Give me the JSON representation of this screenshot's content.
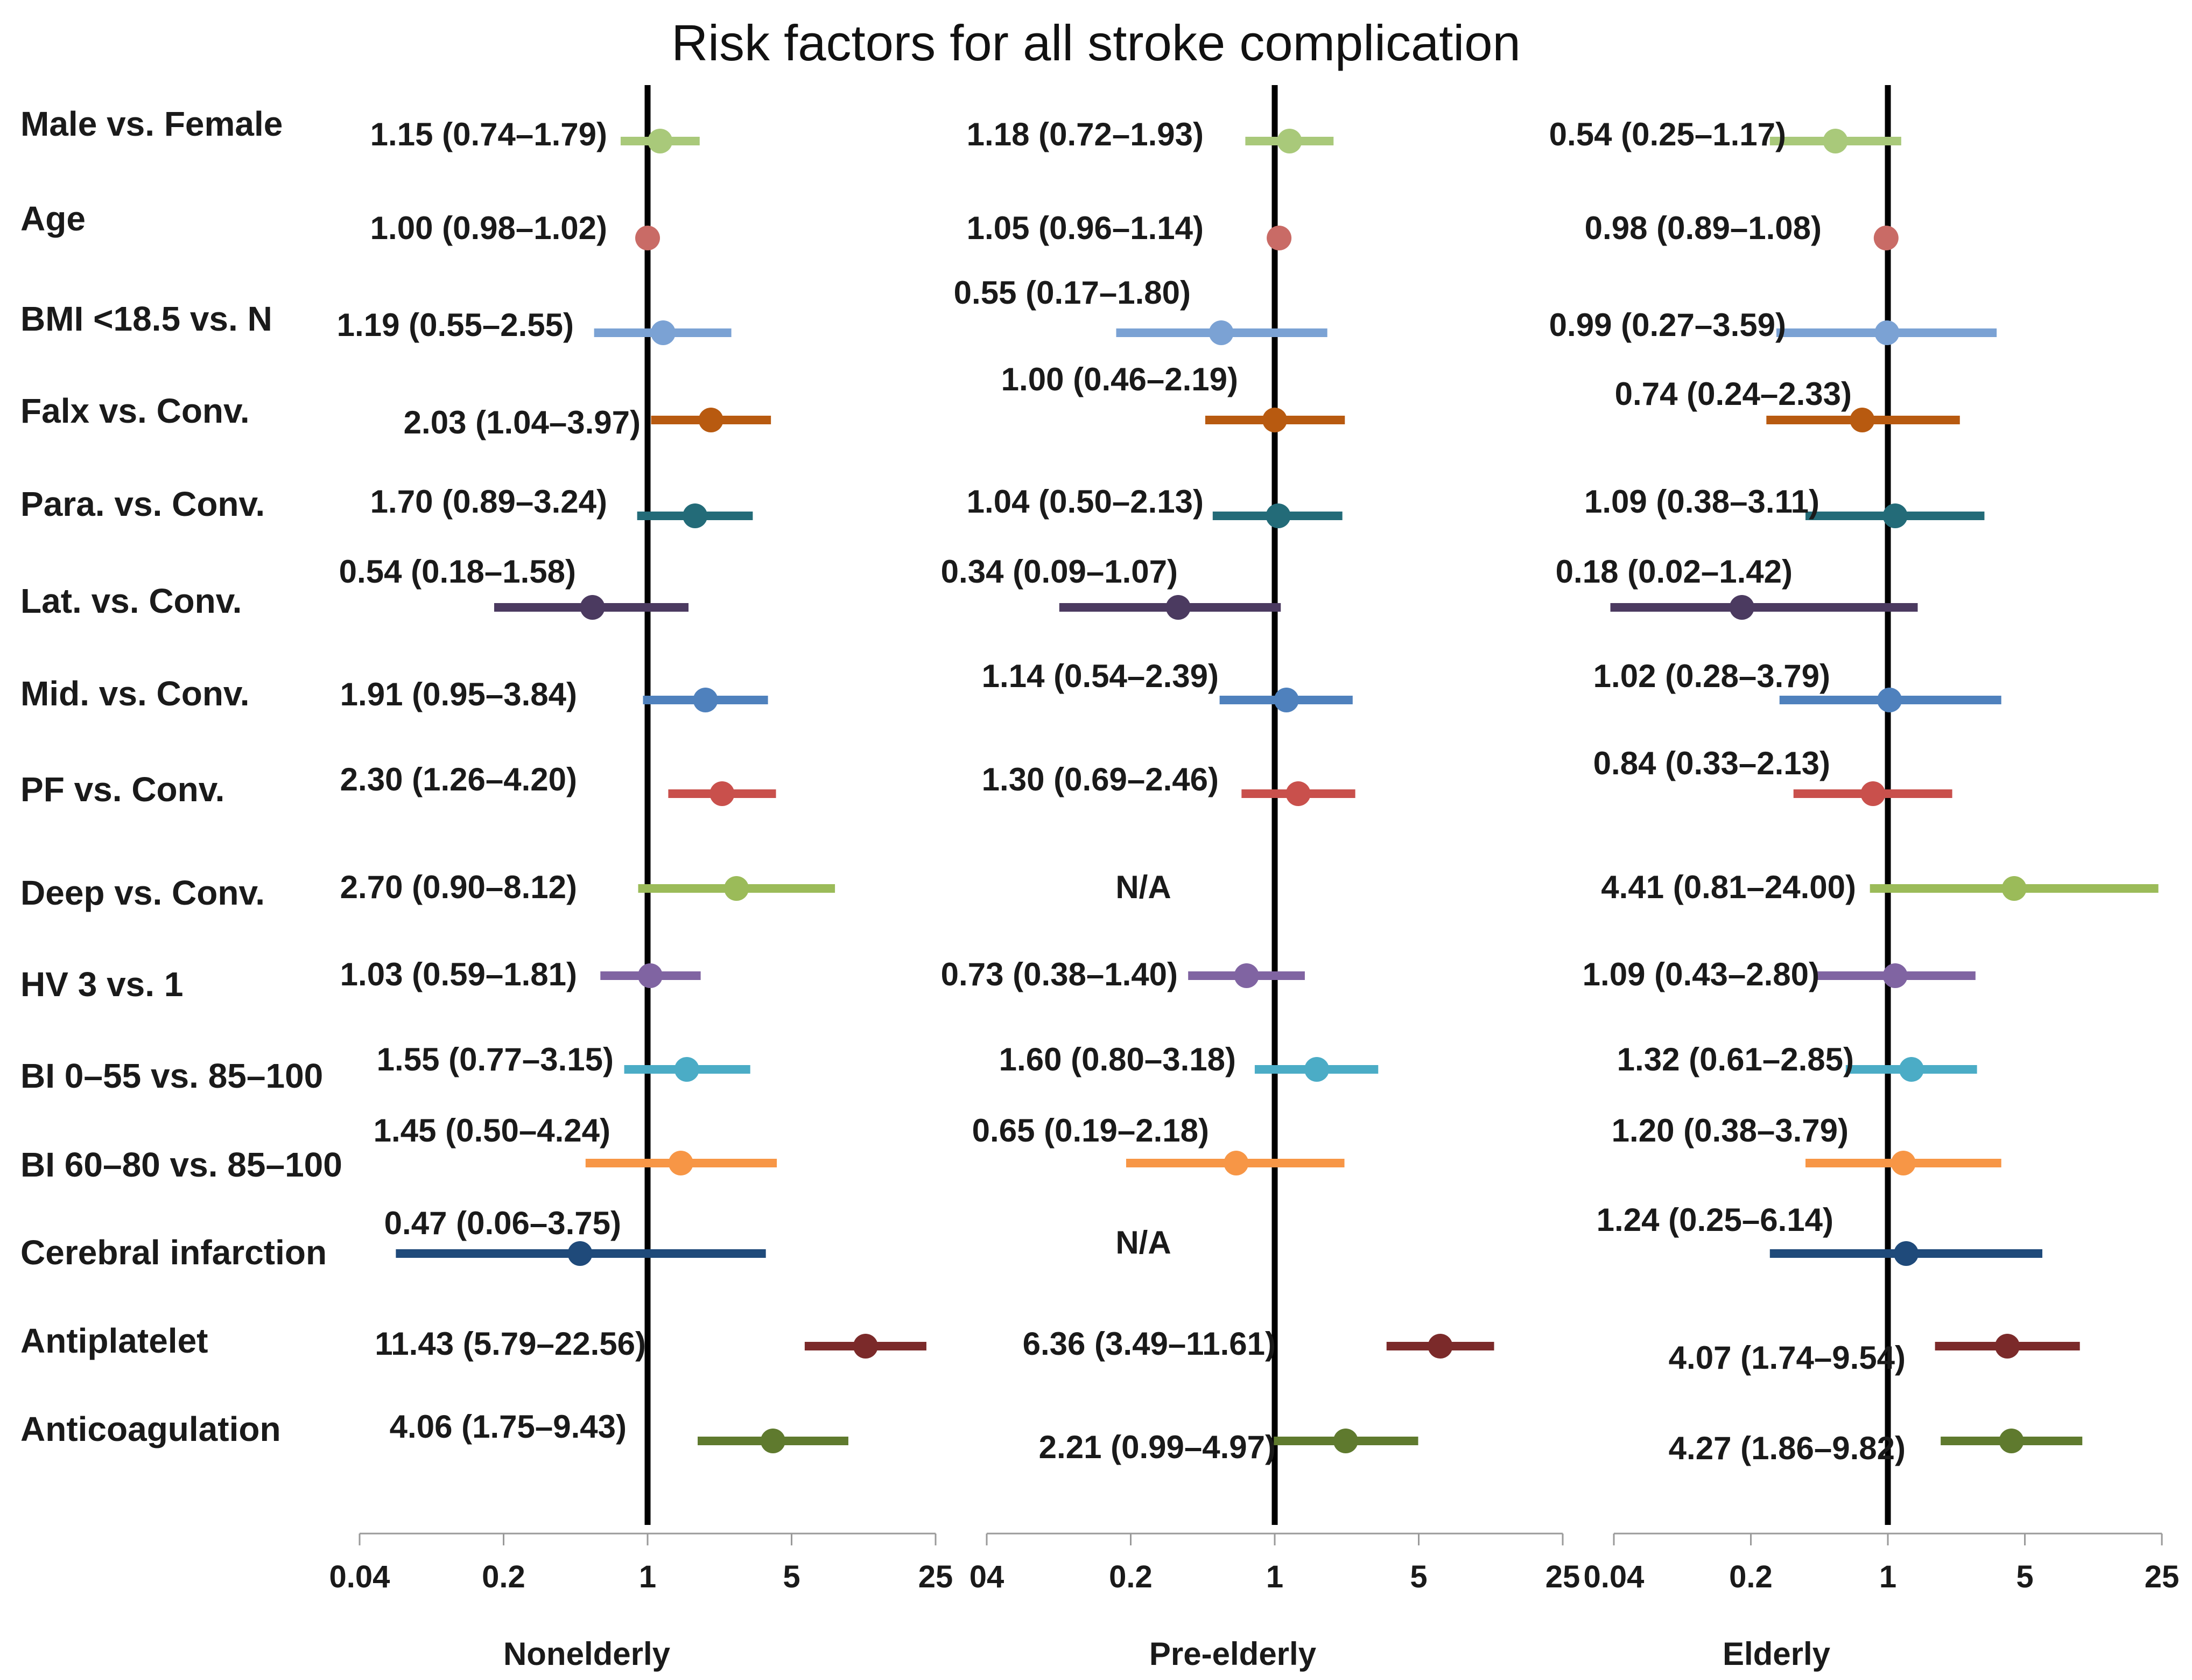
{
  "chart_data": {
    "type": "forest",
    "title": "Risk factors for all stroke complication",
    "x_scale": "log",
    "xlim": [
      0.04,
      25
    ],
    "ticks": [
      "0.04",
      "0.2",
      "1",
      "5",
      "25"
    ],
    "panel_tick_labels": [
      [
        "0.04",
        "0.2",
        "1",
        "5",
        "25"
      ],
      [
        "04",
        "0.2",
        "1",
        "5",
        "25"
      ],
      [
        "0.04",
        "0.2",
        "1",
        "5",
        "25"
      ]
    ],
    "reference_line": 1,
    "factors": [
      {
        "name": "Male vs. Female",
        "color": "#a9c97a"
      },
      {
        "name": "Age",
        "color": "#c96b66"
      },
      {
        "name": "BMI <18.5 vs. N",
        "color": "#7ba2d4"
      },
      {
        "name": "Falx vs. Conv.",
        "color": "#b85a10"
      },
      {
        "name": "Para. vs. Conv.",
        "color": "#236b78"
      },
      {
        "name": "Lat. vs. Conv.",
        "color": "#4b3a60"
      },
      {
        "name": "Mid. vs. Conv.",
        "color": "#4f81bd"
      },
      {
        "name": "PF vs. Conv.",
        "color": "#c9504c"
      },
      {
        "name": "Deep vs. Conv.",
        "color": "#9bbb59"
      },
      {
        "name": "HV 3 vs. 1",
        "color": "#8064a2"
      },
      {
        "name": "BI 0–55 vs. 85–100",
        "color": "#4bacc6"
      },
      {
        "name": "BI 60–80 vs. 85–100",
        "color": "#f79646"
      },
      {
        "name": "Cerebral infarction",
        "color": "#1f4a7a"
      },
      {
        "name": "Antiplatelet",
        "color": "#7b2a2a"
      },
      {
        "name": "Anticoagulation",
        "color": "#5f7a2e"
      }
    ],
    "panels": [
      {
        "name": "Nonelderly",
        "rows": [
          {
            "or": 1.15,
            "lo": 0.74,
            "hi": 1.79,
            "label": "1.15 (0.74–1.79)"
          },
          {
            "or": 1.0,
            "lo": 0.98,
            "hi": 1.02,
            "label": "1.00 (0.98–1.02)"
          },
          {
            "or": 1.19,
            "lo": 0.55,
            "hi": 2.55,
            "label": "1.19 (0.55–2.55)"
          },
          {
            "or": 2.03,
            "lo": 1.04,
            "hi": 3.97,
            "label": "2.03 (1.04–3.97)"
          },
          {
            "or": 1.7,
            "lo": 0.89,
            "hi": 3.24,
            "label": "1.70 (0.89–3.24)"
          },
          {
            "or": 0.54,
            "lo": 0.18,
            "hi": 1.58,
            "label": "0.54 (0.18–1.58)"
          },
          {
            "or": 1.91,
            "lo": 0.95,
            "hi": 3.84,
            "label": "1.91 (0.95–3.84)"
          },
          {
            "or": 2.3,
            "lo": 1.26,
            "hi": 4.2,
            "label": "2.30 (1.26–4.20)"
          },
          {
            "or": 2.7,
            "lo": 0.9,
            "hi": 8.12,
            "label": "2.70 (0.90–8.12)"
          },
          {
            "or": 1.03,
            "lo": 0.59,
            "hi": 1.81,
            "label": "1.03 (0.59–1.81)"
          },
          {
            "or": 1.55,
            "lo": 0.77,
            "hi": 3.15,
            "label": "1.55 (0.77–3.15)"
          },
          {
            "or": 1.45,
            "lo": 0.5,
            "hi": 4.24,
            "label": "1.45 (0.50–4.24)"
          },
          {
            "or": 0.47,
            "lo": 0.06,
            "hi": 3.75,
            "label": "0.47 (0.06–3.75)"
          },
          {
            "or": 11.43,
            "lo": 5.79,
            "hi": 22.56,
            "label": "11.43 (5.79–22.56)"
          },
          {
            "or": 4.06,
            "lo": 1.75,
            "hi": 9.43,
            "label": "4.06 (1.75–9.43)"
          }
        ]
      },
      {
        "name": "Pre-elderly",
        "rows": [
          {
            "or": 1.18,
            "lo": 0.72,
            "hi": 1.93,
            "label": "1.18 (0.72–1.93)"
          },
          {
            "or": 1.05,
            "lo": 0.96,
            "hi": 1.14,
            "label": "1.05 (0.96–1.14)"
          },
          {
            "or": 0.55,
            "lo": 0.17,
            "hi": 1.8,
            "label": "0.55 (0.17–1.80)"
          },
          {
            "or": 1.0,
            "lo": 0.46,
            "hi": 2.19,
            "label": "1.00 (0.46–2.19)"
          },
          {
            "or": 1.04,
            "lo": 0.5,
            "hi": 2.13,
            "label": "1.04 (0.50–2.13)"
          },
          {
            "or": 0.34,
            "lo": 0.09,
            "hi": 1.07,
            "label": "0.34 (0.09–1.07)"
          },
          {
            "or": 1.14,
            "lo": 0.54,
            "hi": 2.39,
            "label": "1.14 (0.54–2.39)"
          },
          {
            "or": 1.3,
            "lo": 0.69,
            "hi": 2.46,
            "label": "1.30 (0.69–2.46)"
          },
          {
            "or": null,
            "lo": null,
            "hi": null,
            "label": "N/A"
          },
          {
            "or": 0.73,
            "lo": 0.38,
            "hi": 1.4,
            "label": "0.73 (0.38–1.40)"
          },
          {
            "or": 1.6,
            "lo": 0.8,
            "hi": 3.18,
            "label": "1.60 (0.80–3.18)"
          },
          {
            "or": 0.65,
            "lo": 0.19,
            "hi": 2.18,
            "label": "0.65 (0.19–2.18)"
          },
          {
            "or": null,
            "lo": null,
            "hi": null,
            "label": "N/A"
          },
          {
            "or": 6.36,
            "lo": 3.49,
            "hi": 11.61,
            "label": "6.36 (3.49–11.61)"
          },
          {
            "or": 2.21,
            "lo": 0.99,
            "hi": 4.97,
            "label": "2.21 (0.99–4.97)"
          }
        ]
      },
      {
        "name": "Elderly",
        "rows": [
          {
            "or": 0.54,
            "lo": 0.25,
            "hi": 1.17,
            "label": "0.54 (0.25–1.17)"
          },
          {
            "or": 0.98,
            "lo": 0.89,
            "hi": 1.08,
            "label": "0.98 (0.89–1.08)"
          },
          {
            "or": 0.99,
            "lo": 0.27,
            "hi": 3.59,
            "label": "0.99 (0.27–3.59)"
          },
          {
            "or": 0.74,
            "lo": 0.24,
            "hi": 2.33,
            "label": "0.74 (0.24–2.33)"
          },
          {
            "or": 1.09,
            "lo": 0.38,
            "hi": 3.11,
            "label": "1.09 (0.38–3.11)"
          },
          {
            "or": 0.18,
            "lo": 0.02,
            "hi": 1.42,
            "label": "0.18 (0.02–1.42)"
          },
          {
            "or": 1.02,
            "lo": 0.28,
            "hi": 3.79,
            "label": "1.02 (0.28–3.79)"
          },
          {
            "or": 0.84,
            "lo": 0.33,
            "hi": 2.13,
            "label": "0.84 (0.33–2.13)"
          },
          {
            "or": 4.41,
            "lo": 0.81,
            "hi": 24.0,
            "label": "4.41 (0.81–24.00)"
          },
          {
            "or": 1.09,
            "lo": 0.43,
            "hi": 2.8,
            "label": "1.09 (0.43–2.80)"
          },
          {
            "or": 1.32,
            "lo": 0.61,
            "hi": 2.85,
            "label": "1.32 (0.61–2.85)"
          },
          {
            "or": 1.2,
            "lo": 0.38,
            "hi": 3.79,
            "label": "1.20 (0.38–3.79)"
          },
          {
            "or": 1.24,
            "lo": 0.25,
            "hi": 6.14,
            "label": "1.24 (0.25–6.14)"
          },
          {
            "or": 4.07,
            "lo": 1.74,
            "hi": 9.54,
            "label": "4.07 (1.74–9.54)"
          },
          {
            "or": 4.27,
            "lo": 1.86,
            "hi": 9.82,
            "label": "4.27 (1.86–9.82)"
          }
        ]
      }
    ]
  }
}
